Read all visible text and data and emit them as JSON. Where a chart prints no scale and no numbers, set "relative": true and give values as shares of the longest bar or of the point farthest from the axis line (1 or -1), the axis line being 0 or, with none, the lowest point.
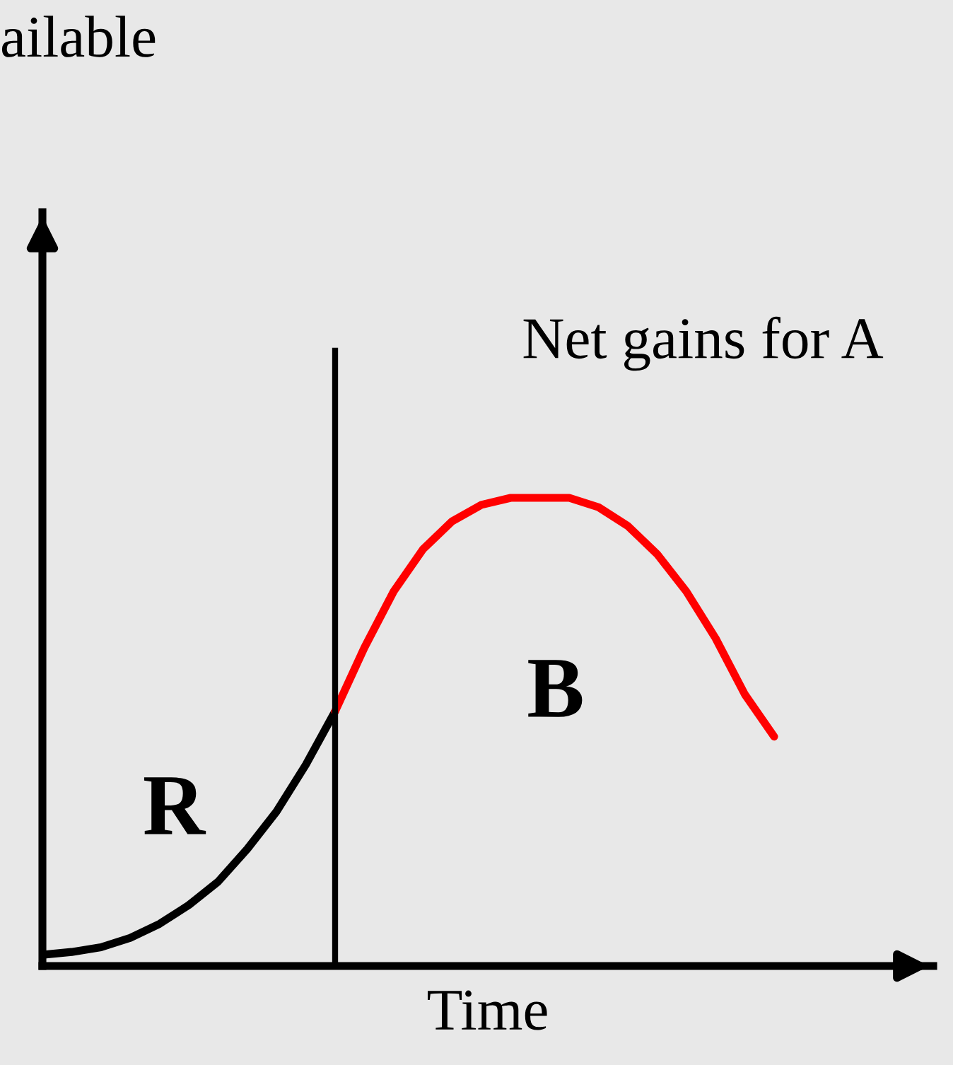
{
  "chart_data": {
    "type": "line",
    "relative": true,
    "title": "ailable",
    "xlabel": "Time",
    "categories": [
      null,
      null,
      null,
      null,
      null,
      null,
      null,
      null,
      null,
      null,
      null,
      null,
      null,
      null,
      null,
      null,
      null,
      null,
      null,
      null,
      null,
      null,
      null,
      null,
      null,
      null
    ],
    "series": [
      {
        "color": "#000000",
        "values": [
          0.024,
          0.03,
          0.04,
          0.06,
          0.09,
          0.13,
          0.18,
          0.25,
          0.33,
          0.43,
          0.544,
          null,
          null,
          null,
          null,
          null,
          null,
          null,
          null,
          null,
          null,
          null,
          null,
          null,
          null,
          null
        ]
      },
      {
        "color": "#ff0000",
        "values": [
          null,
          null,
          null,
          null,
          null,
          null,
          null,
          null,
          null,
          null,
          0.544,
          0.68,
          0.8,
          0.89,
          0.95,
          0.985,
          1.0,
          1.0,
          1.0,
          0.98,
          0.94,
          0.88,
          0.8,
          0.7,
          0.58,
          0.49
        ]
      }
    ],
    "annotations": [
      "Net gains for A",
      "R",
      "B"
    ],
    "grid": false,
    "legend": false,
    "marker": "none",
    "line_style": "solid"
  }
}
